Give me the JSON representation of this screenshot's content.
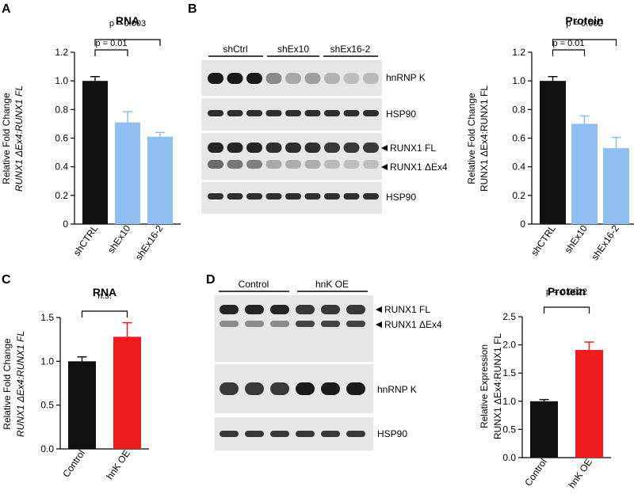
{
  "panel_labels": [
    "A",
    "B",
    "C",
    "D"
  ],
  "chart_data": [
    {
      "id": "A",
      "type": "bar",
      "title": "RNA",
      "ylabel_line1": "Relative Fold Change",
      "ylabel_line2": "RUNX1 ΔEx4:RUNX1 FL",
      "categories": [
        "shCTRL",
        "shEx10",
        "shEx16-2"
      ],
      "values": [
        1.0,
        0.71,
        0.61
      ],
      "errors": [
        0.03,
        0.075,
        0.03
      ],
      "colors": [
        "#111111",
        "#8fbff0",
        "#8fbff0"
      ],
      "ylim": [
        0,
        1.2
      ],
      "yticks": [
        "0",
        "0.2",
        "0.4",
        "0.6",
        "0.8",
        "1.0",
        "1.2"
      ],
      "pvalues": [
        {
          "from": 0,
          "to": 1,
          "label": "p = 0.01"
        },
        {
          "from": 0,
          "to": 2,
          "label": "p = 0.003"
        }
      ]
    },
    {
      "id": "B",
      "type": "bar",
      "title": "Protein",
      "ylabel_line1": "Relative Fold Change",
      "ylabel_line2": "RUNX1 ΔEx4:RUNX1 FL",
      "categories": [
        "shCTRL",
        "shEx10",
        "shEx16-2"
      ],
      "values": [
        1.0,
        0.7,
        0.53
      ],
      "errors": [
        0.03,
        0.055,
        0.075
      ],
      "colors": [
        "#111111",
        "#8fbff0",
        "#8fbff0"
      ],
      "ylim": [
        0,
        1.2
      ],
      "yticks": [
        "0",
        "0.2",
        "0.4",
        "0.6",
        "0.8",
        "1.0",
        "1.2"
      ],
      "pvalues": [
        {
          "from": 0,
          "to": 1,
          "label": "p = 0.01"
        },
        {
          "from": 0,
          "to": 2,
          "label": "p = 0.002"
        }
      ]
    },
    {
      "id": "C",
      "type": "bar",
      "title": "RNA",
      "ylabel_line1": "Relative Fold Change",
      "ylabel_line2": "RUNX1 ΔEx4:RUNX1 FL",
      "categories": [
        "Control",
        "hnK OE"
      ],
      "values": [
        1.0,
        1.28
      ],
      "errors": [
        0.05,
        0.16
      ],
      "colors": [
        "#111111",
        "#ee1c1c"
      ],
      "ylim": [
        0,
        1.5
      ],
      "yticks": [
        "0.0",
        "0.5",
        "1.0",
        "1.5"
      ],
      "pvalues": [
        {
          "from": 0,
          "to": 1,
          "label": "n.s."
        }
      ]
    },
    {
      "id": "D",
      "type": "bar",
      "title": "Protein",
      "ylabel_line1": "Relative Expression",
      "ylabel_line2": "RUNX1 ΔEx4:RUNX1 FL",
      "categories": [
        "Control",
        "hnK OE"
      ],
      "values": [
        1.0,
        1.91
      ],
      "errors": [
        0.03,
        0.14
      ],
      "colors": [
        "#111111",
        "#ee1c1c"
      ],
      "ylim": [
        0,
        2.5
      ],
      "yticks": [
        "0.0",
        "0.5",
        "1.0",
        "1.5",
        "2.0",
        "2.5"
      ],
      "pvalues": [
        {
          "from": 0,
          "to": 1,
          "label": "p = 0.0022"
        }
      ]
    }
  ],
  "blots": {
    "B": {
      "groups": [
        "shCtrl",
        "shEx10",
        "shEx16-2"
      ],
      "lane_intensity": {
        "hnrnpk": [
          1,
          1,
          1,
          0.45,
          0.3,
          0.35,
          0.25,
          0.2,
          0.22
        ],
        "runx1_fl": [
          0.95,
          0.95,
          0.95,
          0.9,
          0.9,
          0.9,
          0.85,
          0.85,
          0.85
        ],
        "runx1_dex4": [
          0.6,
          0.55,
          0.5,
          0.3,
          0.28,
          0.28,
          0.22,
          0.2,
          0.2
        ]
      },
      "labels": {
        "hnrnpk": "hnRNP K",
        "hsp90a": "HSP90",
        "runx1_fl": "RUNX1 FL",
        "runx1_dex4": "RUNX1 ΔEx4",
        "hsp90b": "HSP90"
      }
    },
    "D": {
      "groups": [
        "Control",
        "hnK OE"
      ],
      "lane_intensity": {
        "runx1_fl": [
          0.95,
          0.95,
          0.95,
          0.85,
          0.85,
          0.85
        ],
        "runx1_dex4": [
          0.45,
          0.45,
          0.45,
          0.8,
          0.8,
          0.8
        ],
        "hnrnpk": [
          0.85,
          0.85,
          0.85,
          1,
          1,
          1
        ]
      },
      "labels": {
        "runx1_fl": "RUNX1 FL",
        "runx1_dex4": "RUNX1 ΔEx4",
        "hnrnpk": "hnRNP K",
        "hsp90": "HSP90"
      }
    }
  }
}
